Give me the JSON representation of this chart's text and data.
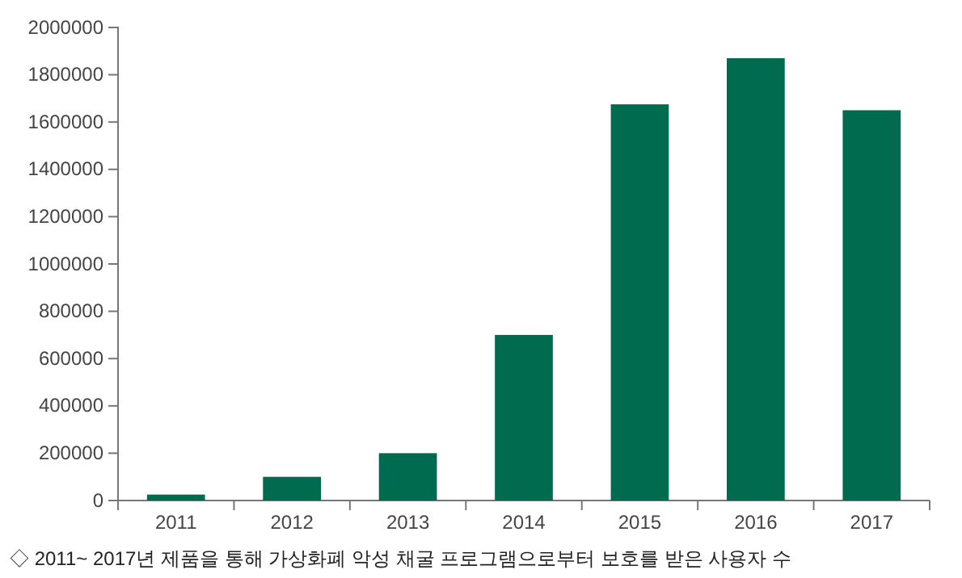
{
  "chart_data": {
    "type": "bar",
    "categories": [
      "2011",
      "2012",
      "2013",
      "2014",
      "2015",
      "2016",
      "2017"
    ],
    "values": [
      25000,
      100000,
      200000,
      700000,
      1675000,
      1870000,
      1650000
    ],
    "color": "#006b4e",
    "ylim": [
      0,
      2000000
    ],
    "yticks": [
      0,
      200000,
      400000,
      600000,
      800000,
      1000000,
      1200000,
      1400000,
      1600000,
      1800000,
      2000000
    ],
    "grid": false,
    "annotations": [
      "◇ 2011~ 2017년 제품을 통해 가상화폐 악성 채굴 프로그램으로부터 보호를 받은 사용자 수"
    ]
  }
}
